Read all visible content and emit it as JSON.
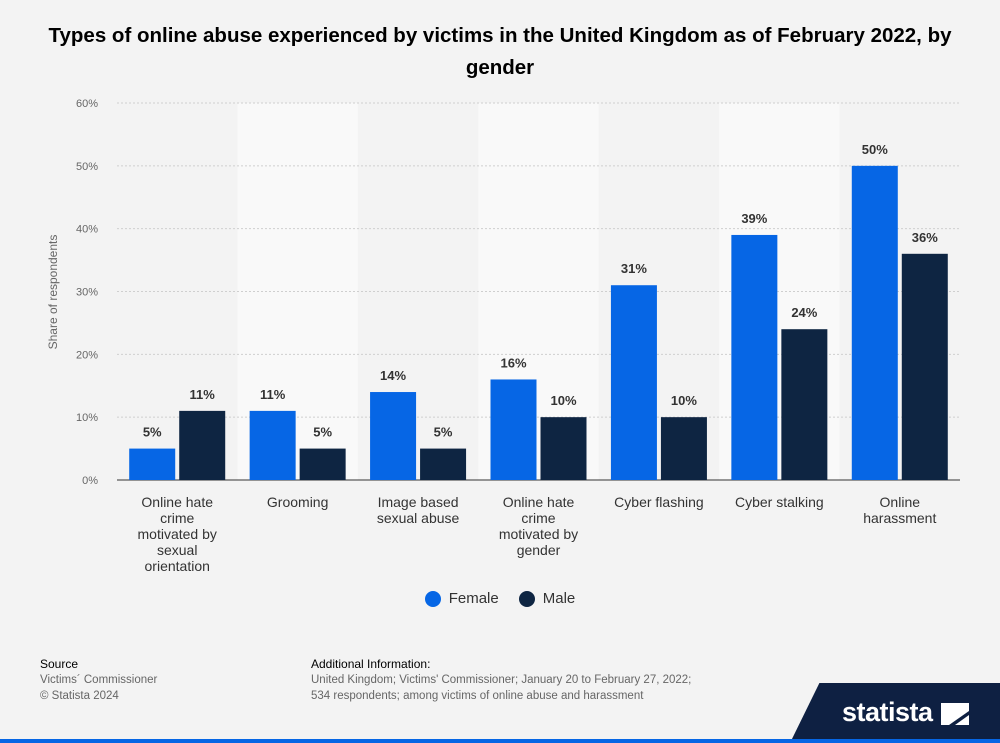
{
  "title": "Types of online abuse experienced by victims in the United Kingdom as of February 2022, by gender",
  "chart_data": {
    "type": "bar",
    "categories": [
      [
        "Online hate",
        "crime",
        "motivated by",
        "sexual",
        "orientation"
      ],
      [
        "Grooming"
      ],
      [
        "Image based",
        "sexual abuse"
      ],
      [
        "Online hate",
        "crime",
        "motivated by",
        "gender"
      ],
      [
        "Cyber flashing"
      ],
      [
        "Cyber stalking"
      ],
      [
        "Online",
        "harassment"
      ]
    ],
    "series": [
      {
        "name": "Female",
        "color": "#0666e5",
        "values": [
          5,
          11,
          14,
          16,
          31,
          39,
          50
        ]
      },
      {
        "name": "Male",
        "color": "#0e2542",
        "values": [
          11,
          5,
          5,
          10,
          10,
          24,
          36
        ]
      }
    ],
    "ylabel": "Share of respondents",
    "ylim": [
      0,
      60
    ],
    "yticks": [
      0,
      10,
      20,
      30,
      40,
      50,
      60
    ],
    "tick_suffix": "%",
    "grid": true,
    "legend": "bottom-center"
  },
  "footer": {
    "source_heading": "Source",
    "source_lines": [
      "Victims´ Commissioner",
      "© Statista 2024"
    ],
    "info_heading": "Additional Information:",
    "info_lines": [
      "United Kingdom; Victims' Commissioner; January 20 to February 27, 2022;",
      "534 respondents; among victims of online abuse and harassment"
    ]
  },
  "brand": "statista"
}
